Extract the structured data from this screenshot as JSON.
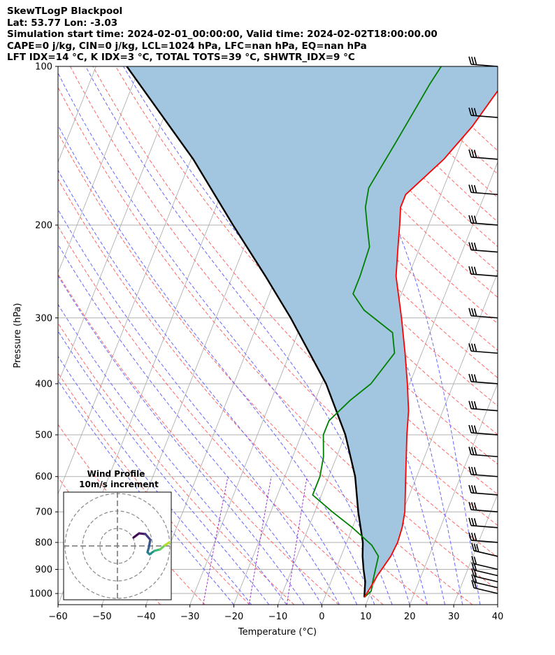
{
  "header": {
    "line1": "SkewTLogP Blackpool",
    "line2": "Lat: 53.77   Lon: -3.03",
    "line3": "Simulation start time: 2024-02-01_00:00:00, Valid time: 2024-02-02T18:00:00.00",
    "line4": "CAPE=0 j/kg, CIN=0 j/kg, LCL=1024 hPa, LFC=nan hPa, EQ=nan hPa",
    "line5": "LFT IDX=14 °C, K IDX=3 °C, TOTAL TOTS=39 °C, SHWTR_IDX=9 °C"
  },
  "chart_data": {
    "type": "line",
    "xlabel": "Temperature (°C)",
    "ylabel": "Pressure (hPa)",
    "xlim": [
      -60,
      40
    ],
    "ylim": [
      1050,
      100
    ],
    "y_scale": "log",
    "skew": true,
    "x_ticks": [
      -60,
      -50,
      -40,
      -30,
      -20,
      -10,
      0,
      10,
      20,
      30,
      40
    ],
    "x_tick_labels": [
      "−60",
      "−50",
      "−40",
      "−30",
      "−20",
      "−10",
      "0",
      "10",
      "20",
      "30",
      "40"
    ],
    "y_ticks": [
      1000,
      900,
      800,
      700,
      600,
      500,
      400,
      300,
      200,
      100
    ],
    "y_tick_labels": [
      "1000",
      "900",
      "800",
      "700",
      "600",
      "500",
      "400",
      "300",
      "200",
      "100"
    ],
    "grid": true,
    "colors": {
      "temperature": "#ff0000",
      "dewpoint": "#008000",
      "parcel": "#000000",
      "area": "#a3c6e0",
      "dry_adiabat": "#ff6666",
      "moist_adiabat": "#6666ff",
      "mixing_ratio": "#9933cc",
      "isotherm": "#aaaaaa"
    },
    "series": [
      {
        "points": [
          [
            1017,
            9
          ],
          [
            975,
            9.5
          ],
          [
            925,
            10
          ],
          [
            850,
            11.3
          ],
          [
            800,
            11.6
          ],
          [
            750,
            11.3
          ],
          [
            700,
            10.5
          ],
          [
            600,
            7.5
          ],
          [
            500,
            4.0
          ],
          [
            450,
            2.2
          ],
          [
            400,
            -0.5
          ],
          [
            350,
            -3.8
          ],
          [
            300,
            -7.8
          ],
          [
            250,
            -12.8
          ],
          [
            220,
            -15.0
          ],
          [
            200,
            -16.6
          ],
          [
            185,
            -18.0
          ],
          [
            175,
            -18.0
          ],
          [
            150,
            -12.5
          ],
          [
            130,
            -9.0
          ],
          [
            115,
            -7.0
          ],
          [
            100,
            -4.5
          ]
        ]
      },
      {
        "points": [
          [
            1017,
            9
          ],
          [
            990,
            10
          ],
          [
            950,
            9.5
          ],
          [
            900,
            9.0
          ],
          [
            850,
            8.5
          ],
          [
            810,
            6.0
          ],
          [
            750,
            0.0
          ],
          [
            700,
            -6.0
          ],
          [
            650,
            -12.0
          ],
          [
            600,
            -12.0
          ],
          [
            550,
            -13.0
          ],
          [
            500,
            -15.0
          ],
          [
            470,
            -15.0
          ],
          [
            430,
            -12.0
          ],
          [
            400,
            -8.8
          ],
          [
            350,
            -6.2
          ],
          [
            320,
            -8.5
          ],
          [
            290,
            -17.0
          ],
          [
            270,
            -21.0
          ],
          [
            250,
            -21.0
          ],
          [
            220,
            -21.5
          ],
          [
            200,
            -24.0
          ],
          [
            185,
            -26.0
          ],
          [
            170,
            -27.0
          ],
          [
            140,
            -25.0
          ],
          [
            120,
            -23.5
          ],
          [
            108,
            -22.5
          ],
          [
            100,
            -21.5
          ]
        ]
      },
      {
        "points": [
          [
            1017,
            9
          ],
          [
            950,
            7.8
          ],
          [
            900,
            6.3
          ],
          [
            850,
            4.9
          ],
          [
            800,
            3.7
          ],
          [
            700,
            -0.1
          ],
          [
            600,
            -4.0
          ],
          [
            500,
            -10.0
          ],
          [
            400,
            -19.0
          ],
          [
            300,
            -33.0
          ],
          [
            250,
            -42.5
          ],
          [
            200,
            -54.5
          ],
          [
            150,
            -69.5
          ],
          [
            100,
            -93.0
          ]
        ]
      }
    ],
    "wind_barbs": [
      {
        "pressure": 1000
      },
      {
        "pressure": 975
      },
      {
        "pressure": 950
      },
      {
        "pressure": 925
      },
      {
        "pressure": 900
      },
      {
        "pressure": 850
      },
      {
        "pressure": 800
      },
      {
        "pressure": 750
      },
      {
        "pressure": 700
      },
      {
        "pressure": 650
      },
      {
        "pressure": 600
      },
      {
        "pressure": 550
      },
      {
        "pressure": 500
      },
      {
        "pressure": 450
      },
      {
        "pressure": 400
      },
      {
        "pressure": 350
      },
      {
        "pressure": 300
      },
      {
        "pressure": 250
      },
      {
        "pressure": 225
      },
      {
        "pressure": 200
      },
      {
        "pressure": 175
      },
      {
        "pressure": 150
      },
      {
        "pressure": 125
      },
      {
        "pressure": 100
      }
    ],
    "inset": {
      "title": "Wind Profile",
      "subtitle": "10m/s increment"
    }
  }
}
